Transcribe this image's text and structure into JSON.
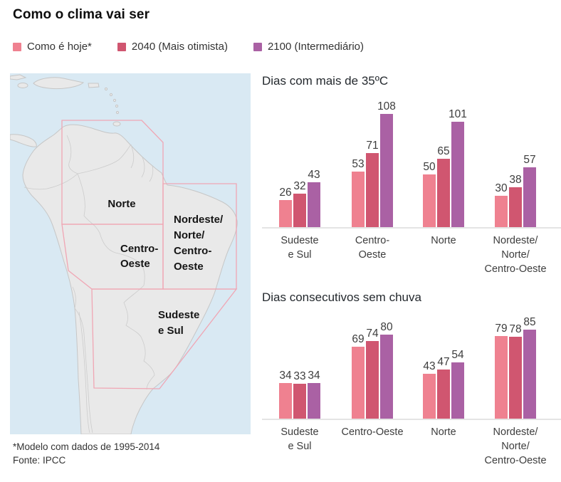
{
  "header": {
    "title": "Como o clima vai ser"
  },
  "legend": {
    "items": [
      {
        "label": "Como é hoje*",
        "color": "#EF8190"
      },
      {
        "label": "2040 (Mais otimista)",
        "color": "#D05670"
      },
      {
        "label": "2100 (Intermediário)",
        "color": "#AA61A4"
      }
    ]
  },
  "map": {
    "regions": [
      {
        "name": "Norte",
        "lines": [
          "Norte"
        ]
      },
      {
        "name": "Centro-Oeste",
        "lines": [
          "Centro-",
          "Oeste"
        ]
      },
      {
        "name": "Nordeste/Norte/Centro-Oeste",
        "lines": [
          "Nordeste/",
          "Norte/",
          "Centro-",
          "Oeste"
        ]
      },
      {
        "name": "Sudeste e Sul",
        "lines": [
          "Sudeste",
          "e Sul"
        ]
      }
    ],
    "colors": {
      "ocean": "#D9E9F3",
      "land": "#E9E9E9",
      "land_border": "#C6C6C6",
      "inner_border": "#CCCCCC",
      "region_outline": "#F0A6B4"
    }
  },
  "footnotes": {
    "model": "*Modelo com dados de 1995-2014",
    "source": "Fonte: IPCC"
  },
  "chart_data": [
    {
      "type": "bar",
      "title": "Dias com mais de 35ºC",
      "categories": [
        "Sudeste e Sul",
        "Centro-Oeste",
        "Norte",
        "Nordeste/Norte/Centro-Oeste"
      ],
      "category_lines": [
        [
          "Sudeste",
          "e Sul"
        ],
        [
          "Centro-",
          "Oeste"
        ],
        [
          "Norte"
        ],
        [
          "Nordeste/",
          "Norte/",
          "Centro-Oeste"
        ]
      ],
      "series": [
        {
          "name": "Como é hoje*",
          "color": "#EF8190",
          "values": [
            26,
            53,
            50,
            30
          ]
        },
        {
          "name": "2040 (Mais otimista)",
          "color": "#D05670",
          "values": [
            32,
            71,
            65,
            38
          ]
        },
        {
          "name": "2100 (Intermediário)",
          "color": "#AA61A4",
          "values": [
            43,
            108,
            101,
            57
          ]
        }
      ],
      "value_labels": true,
      "grid": false,
      "legend_position": "top",
      "ylim": [
        0,
        115
      ]
    },
    {
      "type": "bar",
      "title": "Dias consecutivos sem chuva",
      "categories": [
        "Sudeste e Sul",
        "Centro-Oeste",
        "Norte",
        "Nordeste/Norte/Centro-Oeste"
      ],
      "category_lines": [
        [
          "Sudeste",
          "e Sul"
        ],
        [
          "Centro-Oeste"
        ],
        [
          "Norte"
        ],
        [
          "Nordeste/",
          "Norte/",
          "Centro-Oeste"
        ]
      ],
      "series": [
        {
          "name": "Como é hoje*",
          "color": "#EF8190",
          "values": [
            34,
            69,
            43,
            79
          ]
        },
        {
          "name": "2040 (Mais otimista)",
          "color": "#D05670",
          "values": [
            33,
            74,
            47,
            78
          ]
        },
        {
          "name": "2100 (Intermediário)",
          "color": "#AA61A4",
          "values": [
            34,
            80,
            54,
            85
          ]
        }
      ],
      "value_labels": true,
      "grid": false,
      "legend_position": "top",
      "ylim": [
        0,
        90
      ]
    }
  ]
}
